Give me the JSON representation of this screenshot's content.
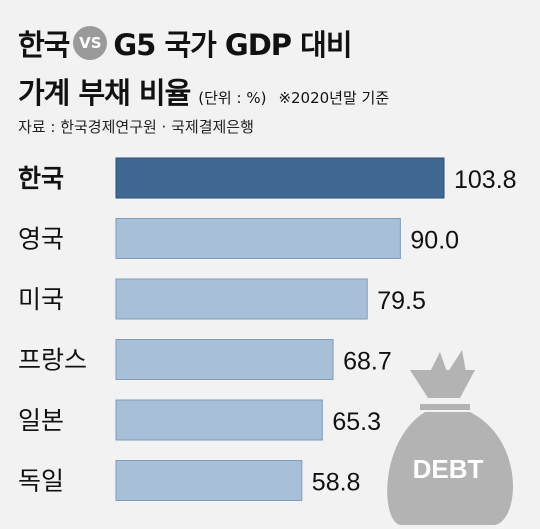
{
  "title": {
    "left": "한국",
    "vs": "VS",
    "right": "G5 국가 GDP 대비",
    "line2": "가계 부채 비율",
    "unit": "(단위 : %)",
    "note": "※2020년말 기준"
  },
  "source": "자료 : 한국경제연구원 · 국제결제은행",
  "illustration": {
    "name": "debt-bag-icon",
    "label": "DEBT"
  },
  "colors": {
    "highlight": "#3f6892",
    "bar": "#a7bfd7",
    "bar_border": "#7f9cbb",
    "bag": "#b3b3b3"
  },
  "chart_data": {
    "type": "bar",
    "orientation": "horizontal",
    "categories": [
      "한국",
      "영국",
      "미국",
      "프랑스",
      "일본",
      "독일"
    ],
    "values": [
      103.8,
      90.0,
      79.5,
      68.7,
      65.3,
      58.8
    ],
    "value_labels": [
      "103.8",
      "90.0",
      "79.5",
      "68.7",
      "65.3",
      "58.8"
    ],
    "highlight_category": "한국",
    "xlim": [
      0,
      103.8
    ],
    "grid": false,
    "legend": "none"
  }
}
